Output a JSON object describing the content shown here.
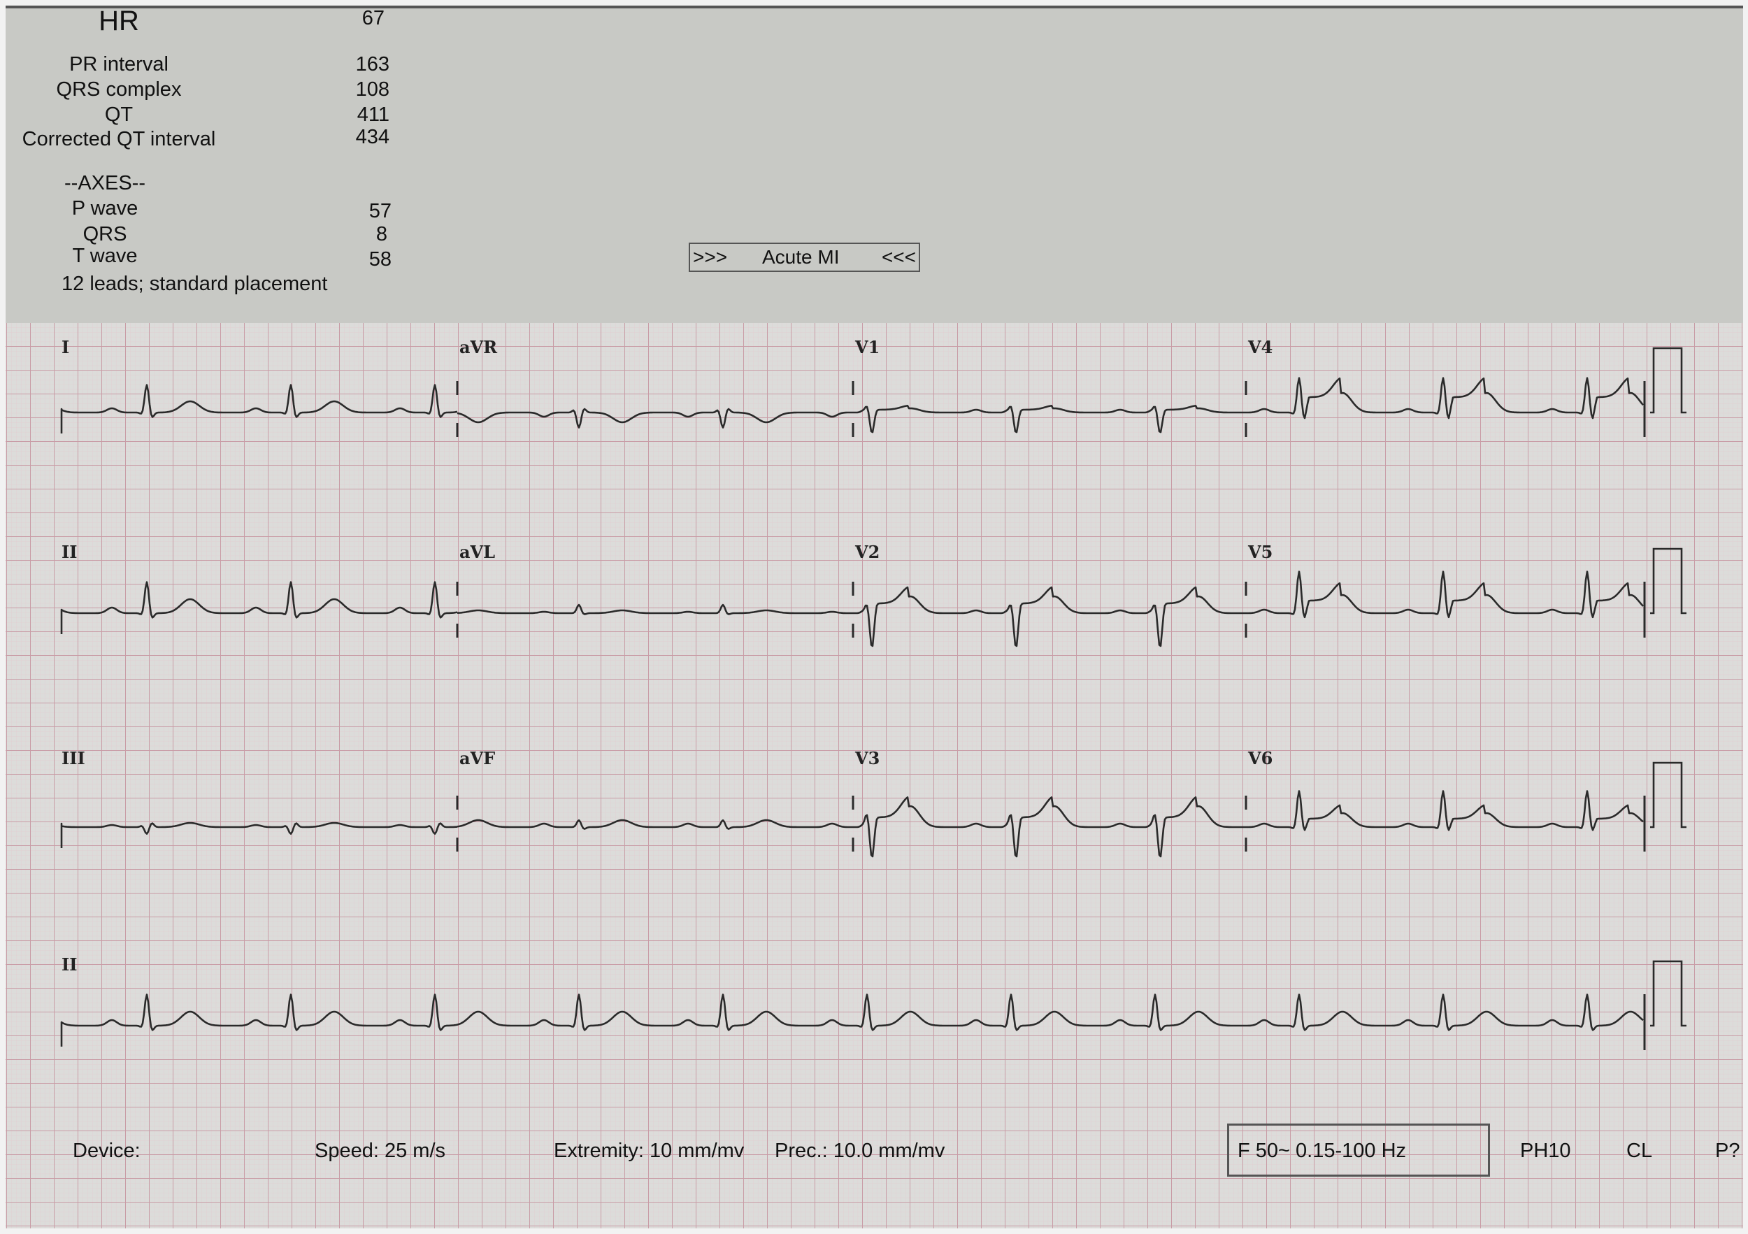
{
  "measurements": {
    "hr_label": "HR",
    "hr_value": "67",
    "pr_label": "PR interval",
    "pr_value": "163",
    "qrs_label": "QRS complex",
    "qrs_value": "108",
    "qt_label": "QT",
    "qt_value": "411",
    "qtc_label": "Corrected QT interval",
    "qtc_value": "434"
  },
  "axes": {
    "title": "--AXES--",
    "p_label": "P wave",
    "p_value": "57",
    "qrs_label": "QRS",
    "qrs_value": "8",
    "t_label": "T wave",
    "t_value": "58",
    "leads_note": "12 leads; standard placement"
  },
  "interpretation": {
    "left_marker": ">>>",
    "text": "Acute MI",
    "right_marker": "<<<"
  },
  "leads": [
    [
      "I",
      "aVR",
      "V1",
      "V4"
    ],
    [
      "II",
      "aVL",
      "V2",
      "V5"
    ],
    [
      "III",
      "aVF",
      "V3",
      "V6"
    ],
    [
      "II"
    ]
  ],
  "footer": {
    "device": "Device:",
    "speed": "Speed: 25 m/s",
    "extremity": "Extremity: 10 mm/mv",
    "prec": "Prec.: 10.0 mm/mv",
    "filter": "F 50~ 0.15-100 Hz",
    "ph": "PH10",
    "cl": "CL",
    "p": "P?"
  },
  "colors": {
    "paper": "#dcdcda",
    "grid_major": "#c99ca6",
    "grid_minor": "#e0c8cc",
    "trace": "#2a2a2a",
    "header": "#c8c9c5"
  }
}
